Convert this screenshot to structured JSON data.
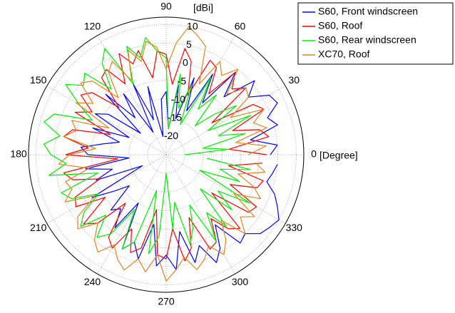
{
  "chart_data": {
    "type": "polar",
    "radial_label": "[dBi]",
    "angle_label": "[Degree]",
    "rlim": [
      -25,
      12
    ],
    "rticks": [
      -20,
      -15,
      -10,
      -5,
      0,
      5,
      10
    ],
    "thetaticks": [
      0,
      30,
      60,
      90,
      120,
      150,
      180,
      210,
      240,
      270,
      300,
      330
    ],
    "grid": true,
    "legend": "upper right",
    "theta": [
      0,
      5,
      10,
      15,
      20,
      25,
      30,
      35,
      40,
      45,
      50,
      55,
      60,
      65,
      70,
      75,
      80,
      85,
      90,
      95,
      100,
      105,
      110,
      115,
      120,
      125,
      130,
      135,
      140,
      145,
      150,
      155,
      160,
      165,
      170,
      175,
      180,
      185,
      190,
      195,
      200,
      205,
      210,
      215,
      220,
      225,
      230,
      235,
      240,
      245,
      250,
      255,
      260,
      265,
      270,
      275,
      280,
      285,
      290,
      295,
      300,
      305,
      310,
      315,
      320,
      325,
      330,
      335,
      340,
      345,
      350,
      355
    ],
    "series": [
      {
        "name": "S60, Front windscreen",
        "color": "#0000ff",
        "values": [
          3,
          5,
          -2,
          6,
          4,
          8,
          7,
          2,
          6,
          -3,
          4,
          -8,
          0,
          -12,
          -3,
          -15,
          -6,
          -18,
          -8,
          -10,
          -20,
          -6,
          -15,
          -4,
          -18,
          -5,
          -12,
          -2,
          -16,
          -6,
          -3,
          -14,
          -4,
          -12,
          -8,
          -2,
          -4,
          -15,
          -3,
          -10,
          -5,
          -18,
          -2,
          -8,
          -12,
          -4,
          -6,
          -1,
          -10,
          3,
          0,
          4,
          -6,
          5,
          2,
          6,
          -4,
          5,
          1,
          7,
          4,
          -2,
          6,
          5,
          8,
          9,
          10,
          8,
          6,
          3,
          4,
          5
        ]
      },
      {
        "name": "S60, Roof",
        "color": "#ff0000",
        "values": [
          2,
          -8,
          3,
          1,
          -6,
          4,
          2,
          -10,
          3,
          0,
          4,
          -5,
          2,
          3,
          -8,
          1,
          4,
          -6,
          2,
          3,
          -4,
          4,
          1,
          5,
          -3,
          3,
          2,
          -7,
          1,
          3,
          -2,
          2,
          -9,
          1,
          3,
          -4,
          2,
          -12,
          3,
          1,
          -6,
          2,
          3,
          -5,
          4,
          1,
          -8,
          2,
          4,
          -3,
          3,
          1,
          -10,
          2,
          3,
          -5,
          4,
          1,
          -7,
          3,
          2,
          -4,
          1,
          3,
          -9,
          2,
          3,
          -6,
          1,
          2,
          -8,
          1
        ]
      },
      {
        "name": "S60, Rear windscreen",
        "color": "#00ee00",
        "values": [
          -20,
          -8,
          -15,
          -3,
          -10,
          0,
          -12,
          -2,
          -8,
          -14,
          -4,
          -10,
          -1,
          -16,
          -5,
          -12,
          -3,
          -18,
          1,
          3,
          7,
          2,
          6,
          -4,
          8,
          5,
          -2,
          6,
          4,
          8,
          2,
          -3,
          7,
          9,
          4,
          8,
          6,
          2,
          7,
          -6,
          5,
          3,
          -4,
          2,
          5,
          -2,
          4,
          1,
          -8,
          3,
          0,
          -15,
          2,
          -3,
          -20,
          -5,
          -12,
          0,
          -4,
          -10,
          2,
          -6,
          0,
          -12,
          -2,
          -8,
          1,
          -15,
          -4,
          -10,
          -2,
          -14
        ]
      },
      {
        "name": "XC70, Roof",
        "color": "#e0861f",
        "values": [
          -3,
          2,
          -6,
          3,
          0,
          4,
          -5,
          2,
          3,
          -2,
          5,
          1,
          4,
          -4,
          6,
          8,
          10,
          5,
          -2,
          4,
          6,
          1,
          5,
          -3,
          4,
          2,
          -5,
          3,
          5,
          -1,
          3,
          -8,
          2,
          0,
          3,
          -6,
          1,
          4,
          -4,
          3,
          2,
          5,
          -3,
          4,
          6,
          1,
          5,
          7,
          3,
          6,
          8,
          4,
          7,
          2,
          9,
          6,
          3,
          7,
          5,
          2,
          6,
          3,
          -2,
          5,
          1,
          4,
          -4,
          3,
          0,
          -5,
          2,
          -1
        ]
      }
    ]
  }
}
